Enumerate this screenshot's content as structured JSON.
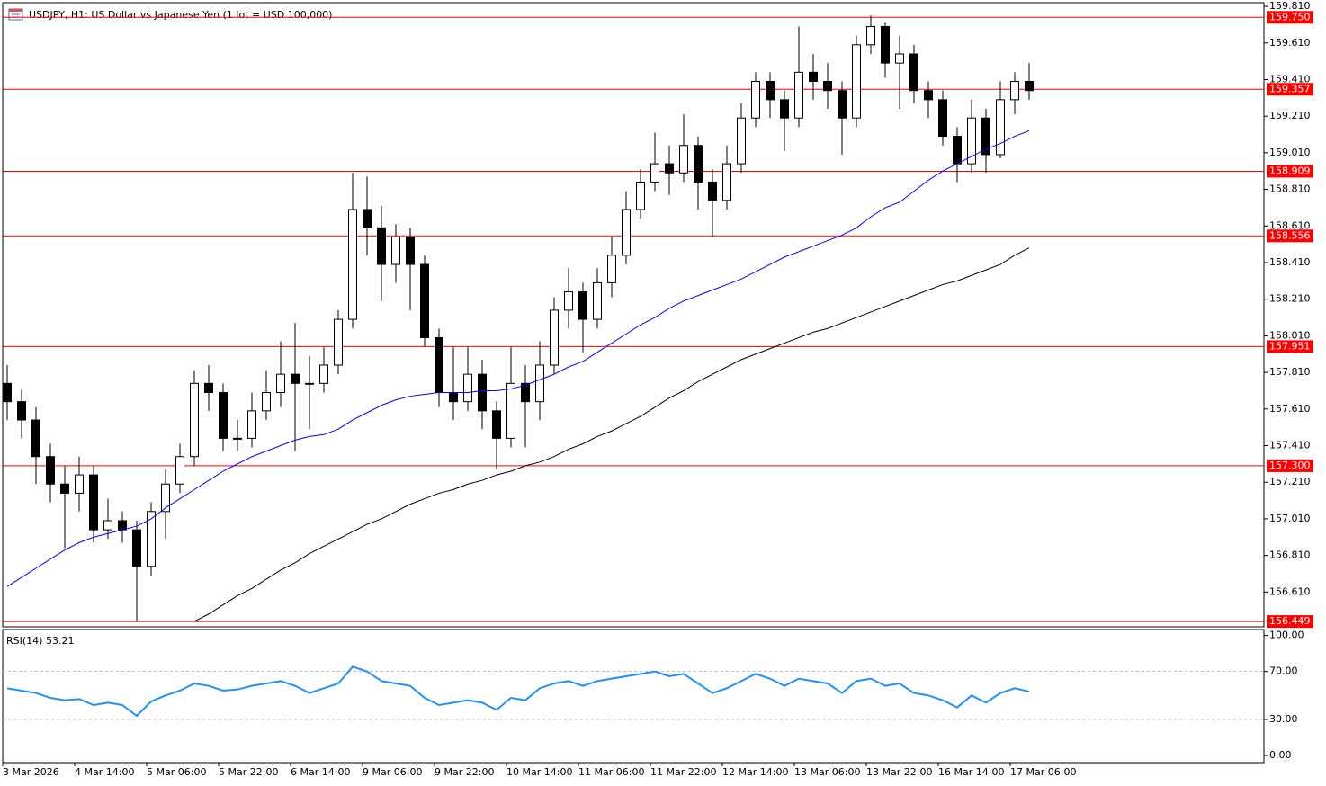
{
  "chart_data": {
    "type": "candlestick",
    "title": "USDJPY, H1:  US Dollar vs Japanese Yen (1 lot = USD 100,000)",
    "categories": [
      "3 Mar 2026",
      null,
      null,
      null,
      null,
      "4 Mar 14:00",
      null,
      null,
      null,
      null,
      "5 Mar 06:00",
      null,
      null,
      null,
      null,
      "5 Mar 22:00",
      null,
      null,
      null,
      null,
      "6 Mar 14:00",
      null,
      null,
      null,
      null,
      "9 Mar 06:00",
      null,
      null,
      null,
      null,
      "9 Mar 22:00",
      null,
      null,
      null,
      null,
      "10 Mar 14:00",
      null,
      null,
      null,
      null,
      "11 Mar 06:00",
      null,
      null,
      null,
      null,
      "11 Mar 22:00",
      null,
      null,
      null,
      null,
      "12 Mar 14:00",
      null,
      null,
      null,
      null,
      "13 Mar 06:00",
      null,
      null,
      null,
      null,
      "13 Mar 22:00",
      null,
      null,
      null,
      null,
      "16 Mar 14:00",
      null,
      null,
      null,
      null,
      "17 Mar 06:00",
      null
    ],
    "open": [
      157.75,
      157.65,
      157.55,
      157.35,
      157.2,
      157.15,
      157.25,
      156.95,
      157.0,
      156.95,
      156.75,
      157.05,
      157.2,
      157.35,
      157.75,
      157.7,
      157.45,
      157.45,
      157.6,
      157.7,
      157.8,
      157.75,
      157.75,
      157.85,
      158.1,
      158.7,
      158.6,
      158.4,
      158.55,
      158.4,
      158.0,
      157.7,
      157.65,
      157.8,
      157.6,
      157.45,
      157.75,
      157.65,
      157.85,
      158.15,
      158.25,
      158.1,
      158.3,
      158.45,
      158.7,
      158.85,
      158.95,
      158.9,
      159.05,
      158.85,
      158.75,
      158.95,
      159.2,
      159.4,
      159.3,
      159.2,
      159.45,
      159.4,
      159.35,
      159.2,
      159.6,
      159.7,
      159.5,
      159.55,
      159.35,
      159.3,
      159.1,
      158.95,
      159.2,
      159.0,
      159.3,
      159.4
    ],
    "high": [
      157.85,
      157.72,
      157.62,
      157.42,
      157.3,
      157.35,
      157.3,
      157.12,
      157.05,
      157.0,
      157.1,
      157.28,
      157.42,
      157.82,
      157.85,
      157.75,
      157.55,
      157.7,
      157.82,
      157.98,
      158.08,
      157.9,
      157.95,
      158.15,
      158.9,
      158.88,
      158.72,
      158.62,
      158.6,
      158.45,
      158.05,
      157.95,
      157.95,
      157.88,
      157.65,
      157.95,
      157.85,
      157.98,
      158.22,
      158.38,
      158.3,
      158.38,
      158.55,
      158.8,
      158.92,
      159.12,
      159.05,
      159.22,
      159.1,
      158.92,
      159.05,
      159.28,
      159.45,
      159.45,
      159.35,
      159.7,
      159.55,
      159.5,
      159.4,
      159.65,
      159.76,
      159.72,
      159.65,
      159.6,
      159.4,
      159.35,
      159.15,
      159.3,
      159.25,
      159.4,
      159.45,
      159.5
    ],
    "low": [
      157.55,
      157.45,
      157.2,
      157.1,
      156.85,
      157.05,
      156.88,
      156.9,
      156.88,
      156.45,
      156.7,
      156.9,
      157.15,
      157.3,
      157.6,
      157.38,
      157.38,
      157.4,
      157.55,
      157.62,
      157.38,
      157.5,
      157.7,
      157.8,
      158.05,
      158.45,
      158.2,
      158.3,
      158.15,
      157.95,
      157.62,
      157.55,
      157.6,
      157.5,
      157.28,
      157.4,
      157.4,
      157.55,
      157.8,
      158.05,
      157.92,
      158.05,
      158.22,
      158.4,
      158.65,
      158.8,
      158.78,
      158.85,
      158.7,
      158.55,
      158.7,
      158.9,
      159.15,
      159.2,
      159.02,
      159.15,
      159.3,
      159.25,
      159.0,
      159.15,
      159.55,
      159.42,
      159.25,
      159.28,
      159.2,
      159.05,
      158.85,
      158.9,
      158.9,
      158.98,
      159.22,
      159.3
    ],
    "close": [
      157.65,
      157.55,
      157.35,
      157.2,
      157.15,
      157.25,
      156.95,
      157.0,
      156.95,
      156.75,
      157.05,
      157.2,
      157.35,
      157.75,
      157.7,
      157.45,
      157.45,
      157.6,
      157.7,
      157.8,
      157.75,
      157.75,
      157.85,
      158.1,
      158.7,
      158.6,
      158.4,
      158.55,
      158.4,
      158.0,
      157.7,
      157.65,
      157.8,
      157.6,
      157.45,
      157.75,
      157.65,
      157.85,
      158.15,
      158.25,
      158.1,
      158.3,
      158.45,
      158.7,
      158.85,
      158.95,
      158.9,
      159.05,
      158.85,
      158.75,
      158.95,
      159.2,
      159.4,
      159.3,
      159.2,
      159.45,
      159.4,
      159.35,
      159.2,
      159.6,
      159.7,
      159.5,
      159.55,
      159.35,
      159.3,
      159.1,
      158.95,
      159.2,
      159.0,
      159.3,
      159.4,
      159.35
    ],
    "bull_color": "#ffffff",
    "bear_color": "#000000",
    "wick_color": "#000000",
    "series": [
      {
        "color": "#0000ff",
        "values": [
          156.64,
          156.69,
          156.74,
          156.79,
          156.84,
          156.88,
          156.91,
          156.93,
          156.95,
          156.97,
          157.01,
          157.07,
          157.12,
          157.17,
          157.22,
          157.27,
          157.31,
          157.35,
          157.38,
          157.41,
          157.44,
          157.46,
          157.47,
          157.5,
          157.55,
          157.59,
          157.63,
          157.66,
          157.68,
          157.69,
          157.7,
          157.7,
          157.7,
          157.71,
          157.71,
          157.72,
          157.74,
          157.77,
          157.8,
          157.84,
          157.87,
          157.92,
          157.97,
          158.02,
          158.07,
          158.11,
          158.16,
          158.2,
          158.23,
          158.26,
          158.29,
          158.32,
          158.36,
          158.4,
          158.44,
          158.47,
          158.5,
          158.53,
          158.56,
          158.6,
          158.66,
          158.71,
          158.74,
          158.8,
          158.86,
          158.91,
          158.95,
          158.99,
          159.03,
          159.06,
          159.1,
          159.13
        ]
      },
      {
        "color": "#000000",
        "values": [
          null,
          null,
          null,
          null,
          null,
          null,
          null,
          null,
          null,
          null,
          null,
          null,
          null,
          156.45,
          156.49,
          156.54,
          156.59,
          156.63,
          156.68,
          156.73,
          156.77,
          156.82,
          156.86,
          156.9,
          156.94,
          156.98,
          157.01,
          157.05,
          157.09,
          157.12,
          157.15,
          157.17,
          157.2,
          157.22,
          157.25,
          157.27,
          157.3,
          157.32,
          157.35,
          157.39,
          157.42,
          157.46,
          157.49,
          157.53,
          157.57,
          157.62,
          157.67,
          157.71,
          157.76,
          157.8,
          157.84,
          157.88,
          157.91,
          157.94,
          157.97,
          158.0,
          158.03,
          158.05,
          158.08,
          158.11,
          158.14,
          158.17,
          158.2,
          158.23,
          158.26,
          158.29,
          158.31,
          158.34,
          158.37,
          158.4,
          158.45,
          158.49
        ]
      }
    ],
    "ylim": [
      156.42,
      159.83
    ],
    "yticks": [
      {
        "value": 159.81,
        "label": "159.810"
      },
      {
        "value": 159.61,
        "label": "159.610"
      },
      {
        "value": 159.41,
        "label": "159.410"
      },
      {
        "value": 159.21,
        "label": "159.210"
      },
      {
        "value": 159.01,
        "label": "159.010"
      },
      {
        "value": 158.81,
        "label": "158.810"
      },
      {
        "value": 158.61,
        "label": "158.610"
      },
      {
        "value": 158.41,
        "label": "158.410"
      },
      {
        "value": 158.21,
        "label": "158.210"
      },
      {
        "value": 158.01,
        "label": "158.010"
      },
      {
        "value": 157.81,
        "label": "157.810"
      },
      {
        "value": 157.61,
        "label": "157.610"
      },
      {
        "value": 157.41,
        "label": "157.410"
      },
      {
        "value": 157.21,
        "label": "157.210"
      },
      {
        "value": 157.01,
        "label": "157.010"
      },
      {
        "value": 156.81,
        "label": "156.810"
      },
      {
        "value": 156.61,
        "label": "156.610"
      }
    ],
    "level_color": "#ff0000",
    "levels": [
      {
        "value": 159.75,
        "label": "159.750"
      },
      {
        "value": 159.357,
        "label": "159.357"
      },
      {
        "value": 158.909,
        "label": "158.909"
      },
      {
        "value": 158.556,
        "label": "158.556"
      },
      {
        "value": 157.951,
        "label": "157.951"
      },
      {
        "value": 157.3,
        "label": "157.300"
      },
      {
        "value": 156.449,
        "label": "156.449"
      }
    ],
    "rsi": {
      "name": "RSI(14)",
      "color": "#1e90ff",
      "values": [
        56,
        54,
        52,
        48,
        46,
        47,
        42,
        44,
        42,
        33,
        45,
        50,
        54,
        60,
        58,
        54,
        55,
        58,
        60,
        62,
        58,
        52,
        56,
        60,
        74,
        70,
        62,
        60,
        58,
        48,
        42,
        44,
        46,
        44,
        38,
        48,
        46,
        56,
        60,
        62,
        58,
        62,
        64,
        66,
        68,
        70,
        66,
        68,
        60,
        52,
        56,
        62,
        68,
        64,
        58,
        64,
        62,
        60,
        52,
        62,
        64,
        58,
        60,
        52,
        50,
        46,
        40,
        50,
        44,
        52,
        56,
        53.21
      ],
      "ylim": [
        -6,
        105
      ],
      "yticks": [
        {
          "value": 100,
          "label": "100.00"
        },
        {
          "value": 70,
          "label": "70.00"
        },
        {
          "value": 30,
          "label": "30.00"
        },
        {
          "value": 0,
          "label": "0.00"
        }
      ],
      "levels": [
        70,
        30
      ]
    }
  }
}
